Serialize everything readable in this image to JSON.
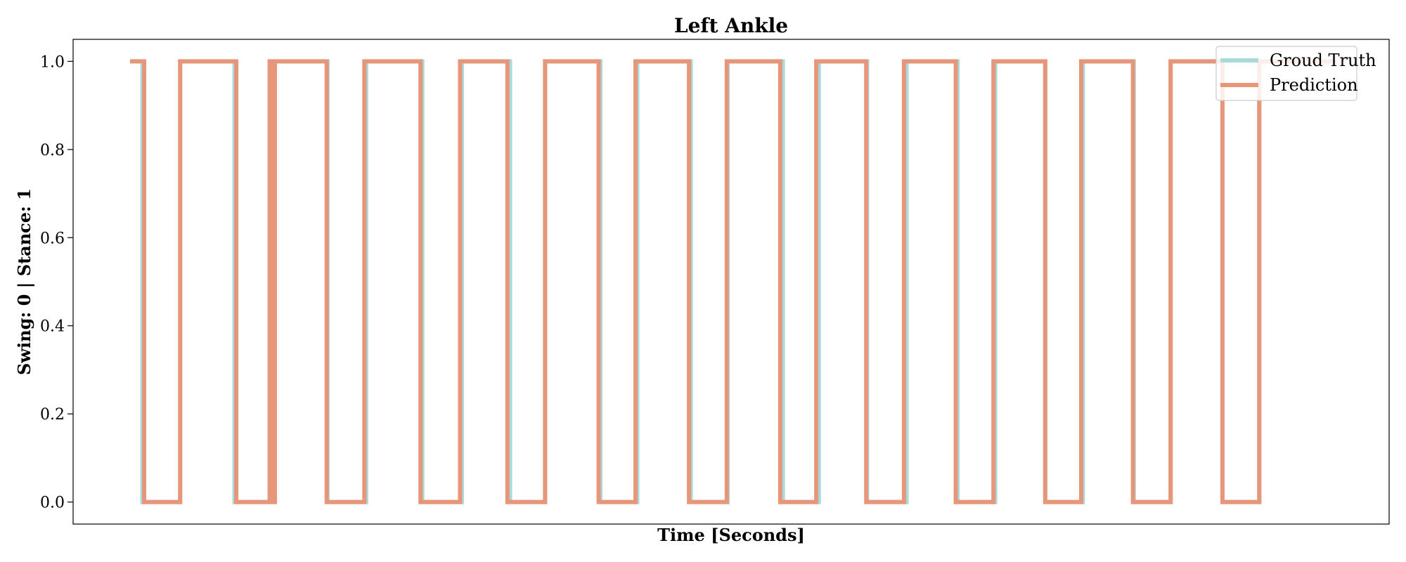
{
  "chart_data": {
    "type": "line",
    "title": "Left Ankle",
    "xlabel": "Time [Seconds]",
    "ylabel": "Swing: 0 | Stance: 1",
    "ylim": [
      -0.05,
      1.05
    ],
    "xlim": [
      0,
      1500
    ],
    "y_ticks": [
      "0.0",
      "0.2",
      "0.4",
      "0.6",
      "0.8",
      "1.0"
    ],
    "y_tick_values": [
      0.0,
      0.2,
      0.4,
      0.6,
      0.8,
      1.0
    ],
    "grid": false,
    "legend_position": "top-right",
    "colors": {
      "ground_truth": "#a8dadc",
      "prediction": "#e8967a"
    },
    "series": [
      {
        "name": "Groud Truth",
        "key": "ground_truth",
        "x": [
          65,
          79,
          79,
          122,
          122,
          184,
          184,
          224,
          224,
          290,
          290,
          334,
          334,
          398,
          398,
          443,
          443,
          498,
          498,
          538,
          538,
          601,
          601,
          643,
          643,
          704,
          704,
          746,
          746,
          809,
          809,
          850,
          850,
          905,
          905,
          950,
          950,
          1008,
          1008,
          1051,
          1051,
          1108,
          1108,
          1151,
          1151,
          1209,
          1209,
          1251,
          1251,
          1310,
          1310,
          1352,
          1352,
          1440
        ],
        "y": [
          1,
          1,
          0,
          0,
          1,
          1,
          0,
          0,
          1,
          1,
          0,
          0,
          1,
          1,
          0,
          0,
          1,
          1,
          0,
          0,
          1,
          1,
          0,
          0,
          1,
          1,
          0,
          0,
          1,
          1,
          0,
          0,
          1,
          1,
          0,
          0,
          1,
          1,
          0,
          0,
          1,
          1,
          0,
          0,
          1,
          1,
          0,
          0,
          1,
          1,
          0,
          0,
          1,
          1
        ]
      },
      {
        "name": "Prediction",
        "key": "prediction",
        "x": [
          65,
          81,
          81,
          122,
          122,
          186,
          186,
          224,
          224,
          226,
          226,
          230,
          230,
          289,
          289,
          332,
          332,
          396,
          396,
          441,
          441,
          495,
          495,
          538,
          538,
          599,
          599,
          641,
          641,
          702,
          702,
          745,
          745,
          806,
          806,
          847,
          847,
          904,
          904,
          947,
          947,
          1006,
          1006,
          1049,
          1049,
          1108,
          1108,
          1149,
          1149,
          1208,
          1208,
          1251,
          1251,
          1310,
          1310,
          1352,
          1352,
          1440
        ],
        "y": [
          1,
          1,
          0,
          0,
          1,
          1,
          0,
          0,
          1,
          1,
          0,
          0,
          1,
          1,
          0,
          0,
          1,
          1,
          0,
          0,
          1,
          1,
          0,
          0,
          1,
          1,
          0,
          0,
          1,
          1,
          0,
          0,
          1,
          1,
          0,
          0,
          1,
          1,
          0,
          0,
          1,
          1,
          0,
          0,
          1,
          1,
          0,
          0,
          1,
          1,
          0,
          0,
          1,
          1,
          0,
          0,
          1,
          1
        ]
      }
    ]
  }
}
